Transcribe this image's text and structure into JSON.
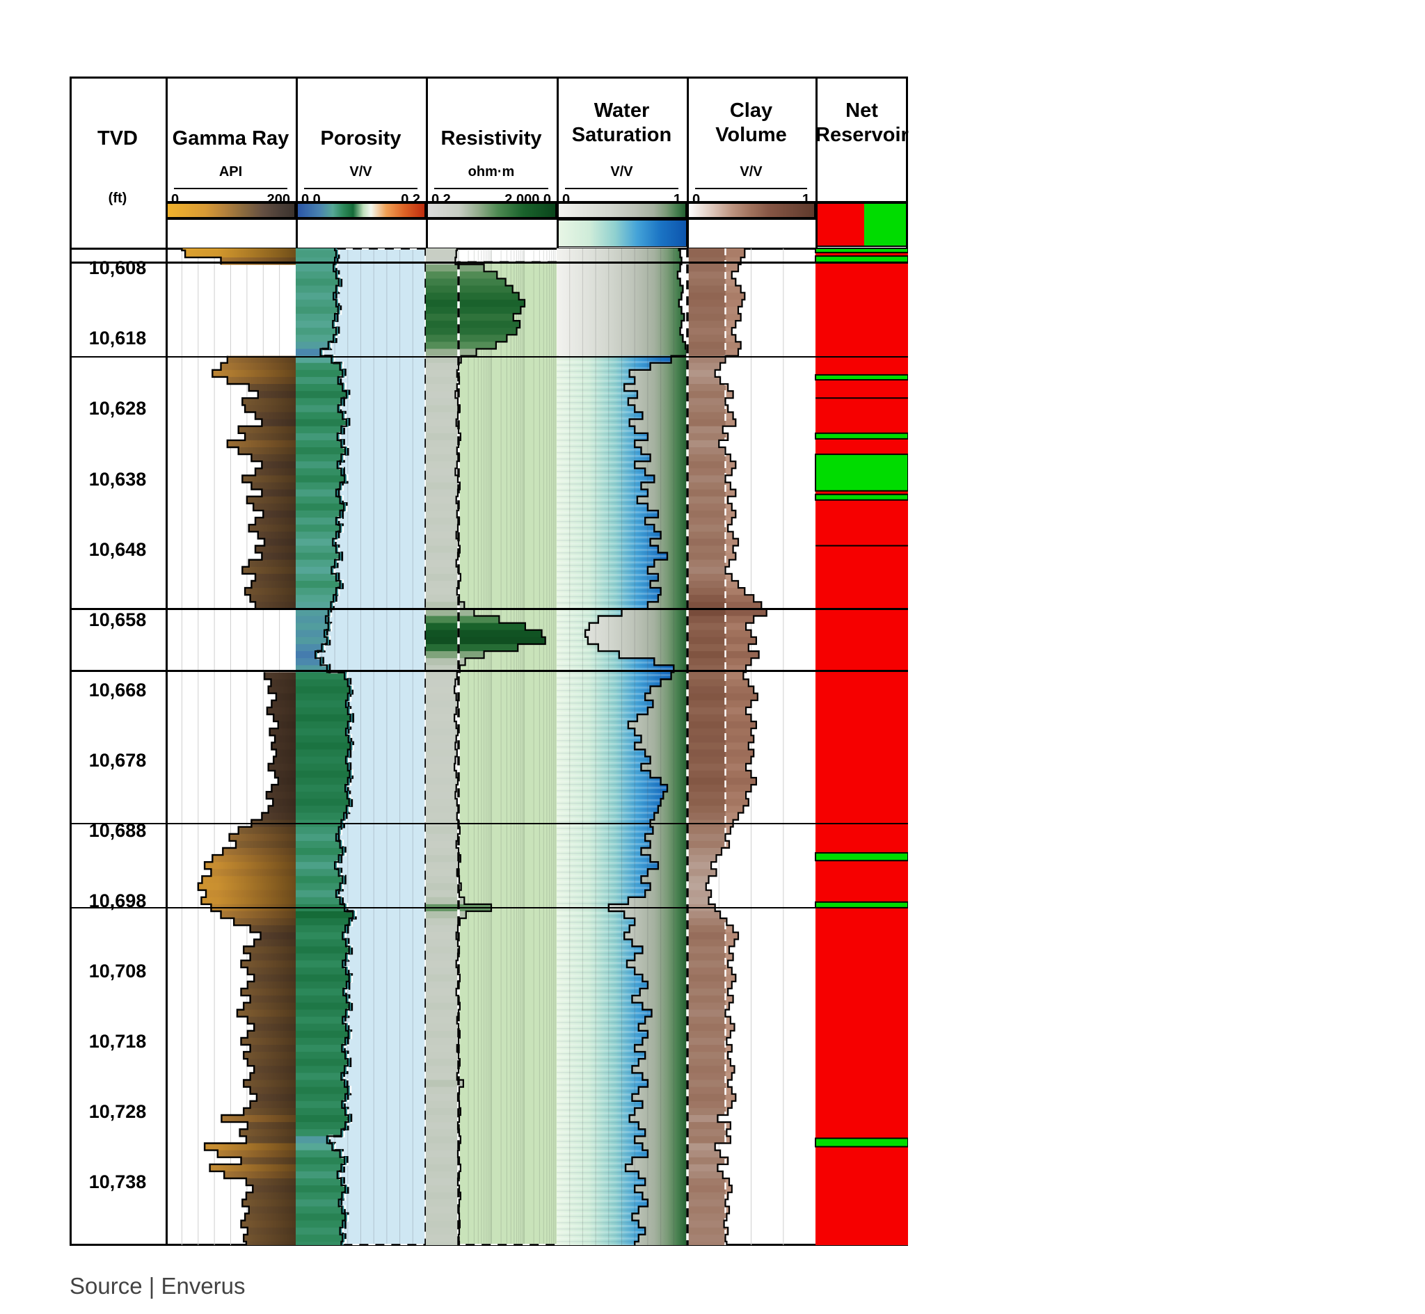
{
  "source_note": "Source | Enverus",
  "tracks": [
    {
      "id": "tvd",
      "title": "TVD",
      "unit": "(ft)"
    },
    {
      "id": "gamma-ray",
      "title": "Gamma Ray",
      "unit": "API",
      "min": "0",
      "max": "200"
    },
    {
      "id": "porosity",
      "title": "Porosity",
      "unit": "V/V",
      "min": "0.0",
      "max": "0.2"
    },
    {
      "id": "resistivity",
      "title": "Resistivity",
      "unit": "ohm·m",
      "min": "0.2",
      "max": "2,000.0"
    },
    {
      "id": "water-saturation",
      "title": "Water\nSaturation",
      "unit": "V/V",
      "min": "0",
      "max": "1"
    },
    {
      "id": "clay-volume",
      "title": "Clay\nVolume",
      "unit": "V/V",
      "min": "0",
      "max": "1"
    },
    {
      "id": "net-reservoir",
      "title": "Net\nReservoir"
    }
  ],
  "chart_data": {
    "type": "well-log",
    "depth_unit": "ft",
    "depth_top": 10605.2,
    "depth_bottom": 10747.0,
    "depth_start": 10605,
    "depth_step": 1,
    "depth_labels": [
      10608,
      10618,
      10628,
      10638,
      10648,
      10658,
      10668,
      10678,
      10688,
      10698,
      10708,
      10718,
      10728,
      10738
    ],
    "zone_boundaries": [
      10607.2,
      10620.6,
      10656.5,
      10665.3,
      10687.0,
      10699.0
    ],
    "gamma_null_zones": [
      [
        10608,
        10620.6
      ],
      [
        10656.5,
        10665.3
      ]
    ],
    "sw_wet_zone": [
      10605.2,
      10620.6
    ],
    "net_hairlines": [
      10626.5,
      10647.5
    ],
    "net_green_intervals": [
      [
        10605.2,
        10605.8
      ],
      [
        10606.3,
        10607.2
      ],
      [
        10623.2,
        10623.9
      ],
      [
        10631.5,
        10632.3
      ],
      [
        10634.5,
        10639.7
      ],
      [
        10640.2,
        10641.0
      ],
      [
        10691.2,
        10692.3
      ],
      [
        10698.2,
        10699.0
      ],
      [
        10731.8,
        10733.0
      ]
    ],
    "scales": {
      "gamma_ray": [
        0,
        200
      ],
      "porosity": [
        0.0,
        0.2
      ],
      "resistivity_log": [
        0.2,
        2000
      ],
      "water_saturation": [
        0,
        1
      ],
      "clay_volume": [
        0,
        1
      ]
    },
    "series": {
      "gamma_ray": [
        25,
        30,
        85,
        null,
        null,
        null,
        null,
        null,
        null,
        null,
        null,
        null,
        null,
        null,
        null,
        null,
        95,
        85,
        72,
        95,
        128,
        142,
        118,
        122,
        138,
        148,
        112,
        122,
        95,
        112,
        132,
        148,
        138,
        118,
        132,
        148,
        125,
        135,
        150,
        138,
        128,
        142,
        152,
        138,
        148,
        128,
        118,
        138,
        132,
        122,
        130,
        138,
        null,
        null,
        null,
        null,
        null,
        null,
        null,
        null,
        null,
        152,
        162,
        158,
        170,
        163,
        156,
        166,
        173,
        160,
        168,
        163,
        170,
        166,
        158,
        168,
        173,
        163,
        155,
        165,
        158,
        148,
        132,
        112,
        98,
        108,
        88,
        72,
        60,
        70,
        56,
        50,
        62,
        55,
        70,
        85,
        105,
        130,
        146,
        136,
        120,
        130,
        116,
        126,
        136,
        126,
        116,
        130,
        120,
        110,
        126,
        136,
        126,
        116,
        130,
        120,
        126,
        136,
        130,
        120,
        130,
        140,
        130,
        120,
        86,
        126,
        114,
        124,
        60,
        80,
        116,
        68,
        90,
        124,
        134,
        124,
        118,
        128,
        122,
        116,
        126,
        120,
        124
      ],
      "porosity": [
        0.06,
        0.062,
        0.06,
        0.058,
        0.062,
        0.066,
        0.062,
        0.058,
        0.062,
        0.065,
        0.06,
        0.057,
        0.062,
        0.058,
        0.05,
        0.038,
        0.055,
        0.068,
        0.072,
        0.065,
        0.072,
        0.078,
        0.07,
        0.065,
        0.072,
        0.078,
        0.07,
        0.064,
        0.07,
        0.076,
        0.07,
        0.064,
        0.07,
        0.075,
        0.068,
        0.062,
        0.068,
        0.074,
        0.068,
        0.062,
        0.068,
        0.062,
        0.057,
        0.062,
        0.067,
        0.06,
        0.055,
        0.062,
        0.068,
        0.062,
        0.058,
        0.054,
        0.05,
        0.046,
        0.05,
        0.044,
        0.048,
        0.04,
        0.03,
        0.038,
        0.048,
        0.075,
        0.08,
        0.083,
        0.08,
        0.077,
        0.08,
        0.084,
        0.08,
        0.077,
        0.081,
        0.084,
        0.08,
        0.077,
        0.08,
        0.083,
        0.08,
        0.076,
        0.079,
        0.082,
        0.078,
        0.074,
        0.07,
        0.066,
        0.062,
        0.068,
        0.072,
        0.066,
        0.06,
        0.066,
        0.072,
        0.068,
        0.062,
        0.068,
        0.075,
        0.088,
        0.082,
        0.076,
        0.072,
        0.077,
        0.082,
        0.077,
        0.072,
        0.077,
        0.082,
        0.078,
        0.073,
        0.078,
        0.082,
        0.077,
        0.072,
        0.077,
        0.081,
        0.076,
        0.071,
        0.076,
        0.08,
        0.075,
        0.07,
        0.075,
        0.08,
        0.076,
        0.071,
        0.076,
        0.081,
        0.076,
        0.07,
        0.048,
        0.056,
        0.068,
        0.075,
        0.07,
        0.064,
        0.07,
        0.076,
        0.071,
        0.066,
        0.071,
        0.076,
        0.072,
        0.068,
        0.072,
        0.07
      ],
      "resistivity": [
        1.8,
        1.7,
        1.6,
        12,
        30,
        55,
        90,
        140,
        210,
        160,
        95,
        150,
        120,
        60,
        28,
        7,
        2.4,
        2.0,
        1.8,
        2.1,
        1.8,
        1.6,
        1.9,
        2.2,
        1.9,
        1.7,
        2.0,
        2.3,
        2.0,
        1.8,
        2.1,
        1.8,
        1.6,
        1.9,
        2.2,
        1.9,
        1.7,
        2.0,
        1.8,
        2.1,
        1.9,
        1.7,
        2.0,
        2.2,
        1.9,
        1.7,
        2.0,
        2.3,
        2.0,
        1.8,
        2.1,
        3.0,
        6,
        35,
        220,
        700,
        900,
        130,
        12,
        3.2,
        2.2,
        1.8,
        1.6,
        1.5,
        1.7,
        1.9,
        1.7,
        1.5,
        1.7,
        1.9,
        1.7,
        1.6,
        1.8,
        1.6,
        1.5,
        1.7,
        1.9,
        1.7,
        1.6,
        1.8,
        2.0,
        1.8,
        2.0,
        2.2,
        1.9,
        1.7,
        2.0,
        2.3,
        2.0,
        1.8,
        2.1,
        2.4,
        2.1,
        3.0,
        20,
        3.4,
        2.2,
        1.9,
        1.7,
        1.9,
        2.1,
        1.9,
        1.7,
        1.9,
        2.2,
        1.9,
        1.7,
        2.0,
        2.2,
        2.0,
        1.8,
        2.0,
        2.2,
        2.0,
        1.8,
        2.0,
        2.2,
        2.0,
        1.8,
        2.8,
        2.1,
        1.9,
        2.1,
        2.3,
        2.1,
        1.9,
        2.1,
        2.3,
        2.1,
        1.9,
        2.1,
        2.3,
        2.1,
        1.9,
        2.1,
        2.3,
        2.1,
        2.0,
        2.1,
        2.2,
        2.1,
        2.0,
        2.1
      ],
      "water_saturation": [
        0.94,
        0.95,
        0.96,
        0.95,
        0.93,
        0.95,
        0.97,
        0.96,
        0.94,
        0.96,
        0.98,
        0.96,
        0.95,
        0.97,
        0.99,
        1.0,
        0.88,
        0.72,
        0.56,
        0.6,
        0.52,
        0.62,
        0.55,
        0.6,
        0.66,
        0.56,
        0.6,
        0.7,
        0.6,
        0.65,
        0.72,
        0.6,
        0.68,
        0.75,
        0.65,
        0.7,
        0.62,
        0.7,
        0.78,
        0.68,
        0.75,
        0.8,
        0.72,
        0.78,
        0.85,
        0.75,
        0.7,
        0.78,
        0.72,
        0.8,
        0.78,
        0.7,
        0.5,
        0.32,
        0.25,
        0.22,
        0.24,
        0.32,
        0.48,
        0.75,
        0.9,
        0.88,
        0.8,
        0.72,
        0.68,
        0.74,
        0.7,
        0.62,
        0.55,
        0.6,
        0.65,
        0.6,
        0.68,
        0.72,
        0.65,
        0.72,
        0.8,
        0.85,
        0.82,
        0.8,
        0.78,
        0.75,
        0.72,
        0.74,
        0.68,
        0.72,
        0.65,
        0.72,
        0.78,
        0.7,
        0.65,
        0.72,
        0.68,
        0.55,
        0.4,
        0.52,
        0.6,
        0.56,
        0.52,
        0.58,
        0.66,
        0.6,
        0.54,
        0.6,
        0.66,
        0.7,
        0.64,
        0.58,
        0.66,
        0.73,
        0.68,
        0.63,
        0.7,
        0.66,
        0.6,
        0.68,
        0.63,
        0.58,
        0.66,
        0.7,
        0.63,
        0.58,
        0.66,
        0.6,
        0.56,
        0.63,
        0.68,
        0.6,
        0.66,
        0.7,
        0.58,
        0.53,
        0.63,
        0.68,
        0.6,
        0.66,
        0.7,
        0.63,
        0.58,
        0.63,
        0.68,
        0.63,
        0.6
      ],
      "clay_volume": [
        0.45,
        0.45,
        0.42,
        0.4,
        0.35,
        0.38,
        0.42,
        0.45,
        0.43,
        0.4,
        0.42,
        0.38,
        0.35,
        0.38,
        0.42,
        0.4,
        0.3,
        0.26,
        0.22,
        0.26,
        0.32,
        0.36,
        0.3,
        0.32,
        0.36,
        0.38,
        0.28,
        0.32,
        0.25,
        0.3,
        0.34,
        0.38,
        0.35,
        0.3,
        0.34,
        0.38,
        0.32,
        0.35,
        0.38,
        0.35,
        0.32,
        0.36,
        0.4,
        0.36,
        0.38,
        0.33,
        0.3,
        0.35,
        0.4,
        0.45,
        0.52,
        0.58,
        0.62,
        0.52,
        0.46,
        0.5,
        0.54,
        0.48,
        0.56,
        0.5,
        0.46,
        0.44,
        0.48,
        0.52,
        0.55,
        0.5,
        0.46,
        0.5,
        0.54,
        0.5,
        0.52,
        0.48,
        0.52,
        0.5,
        0.46,
        0.5,
        0.54,
        0.5,
        0.46,
        0.48,
        0.44,
        0.4,
        0.36,
        0.34,
        0.3,
        0.33,
        0.27,
        0.23,
        0.19,
        0.23,
        0.17,
        0.15,
        0.19,
        0.17,
        0.22,
        0.26,
        0.31,
        0.36,
        0.4,
        0.37,
        0.33,
        0.36,
        0.32,
        0.35,
        0.38,
        0.35,
        0.32,
        0.36,
        0.33,
        0.3,
        0.34,
        0.37,
        0.34,
        0.31,
        0.35,
        0.32,
        0.34,
        0.37,
        0.35,
        0.32,
        0.35,
        0.38,
        0.35,
        0.32,
        0.24,
        0.34,
        0.31,
        0.34,
        0.22,
        0.26,
        0.32,
        0.24,
        0.28,
        0.33,
        0.35,
        0.32,
        0.3,
        0.33,
        0.31,
        0.29,
        0.32,
        0.3,
        0.31
      ]
    },
    "colors": {
      "net_red": "#f60000",
      "net_green": "#00dc00",
      "porosity_shade_blue": "#cfe7f3",
      "resistivity_shade_green": "#c9e3ba",
      "resistivity_cutoff_ohmm": 2.0,
      "clay_cutoff_vv": 0.3,
      "gridline": "#cfcfcf"
    },
    "colormaps": {
      "gamma_ray": [
        [
          0,
          "#f2b32c"
        ],
        [
          0.3,
          "#d89a35"
        ],
        [
          0.45,
          "#b5823c"
        ],
        [
          0.6,
          "#8a6a3e"
        ],
        [
          0.75,
          "#655042"
        ],
        [
          0.88,
          "#4c3f38"
        ],
        [
          1,
          "#3c332d"
        ]
      ],
      "porosity": [
        [
          0,
          "#2a55a6"
        ],
        [
          0.18,
          "#4a84b0"
        ],
        [
          0.28,
          "#56a896"
        ],
        [
          0.36,
          "#2e8a5c"
        ],
        [
          0.44,
          "#156b38"
        ],
        [
          0.52,
          "#bfe0bc"
        ],
        [
          0.58,
          "#f3f7ef"
        ],
        [
          0.7,
          "#f0a055"
        ],
        [
          0.84,
          "#dd6426"
        ],
        [
          1,
          "#bf2d0e"
        ]
      ],
      "resistivity": [
        [
          0,
          "#dcdcdc"
        ],
        [
          0.25,
          "#c6cdc2"
        ],
        [
          0.4,
          "#93ad8c"
        ],
        [
          0.55,
          "#4e8a52"
        ],
        [
          0.75,
          "#1a632c"
        ],
        [
          1,
          "#0a451b"
        ]
      ],
      "sw_background": [
        [
          0,
          "#f2f2ef"
        ],
        [
          0.4,
          "#d3d7cf"
        ],
        [
          0.6,
          "#bdc3b8"
        ],
        [
          0.75,
          "#a5b1a0"
        ],
        [
          0.85,
          "#7b9b78"
        ],
        [
          0.93,
          "#47804f"
        ],
        [
          1,
          "#235f31"
        ]
      ],
      "sw_overlay": [
        [
          0,
          "#e9f6e6"
        ],
        [
          0.25,
          "#cfecd9"
        ],
        [
          0.45,
          "#8fd0cf"
        ],
        [
          0.62,
          "#44a3d8"
        ],
        [
          0.8,
          "#1b74c4"
        ],
        [
          1,
          "#0d55ad"
        ]
      ],
      "clay_volume": [
        [
          0,
          "#ffffff"
        ],
        [
          0.2,
          "#dcc4b8"
        ],
        [
          0.35,
          "#bd9480"
        ],
        [
          0.5,
          "#a0715c"
        ],
        [
          0.65,
          "#855544"
        ],
        [
          1,
          "#5f3a2c"
        ]
      ]
    }
  }
}
